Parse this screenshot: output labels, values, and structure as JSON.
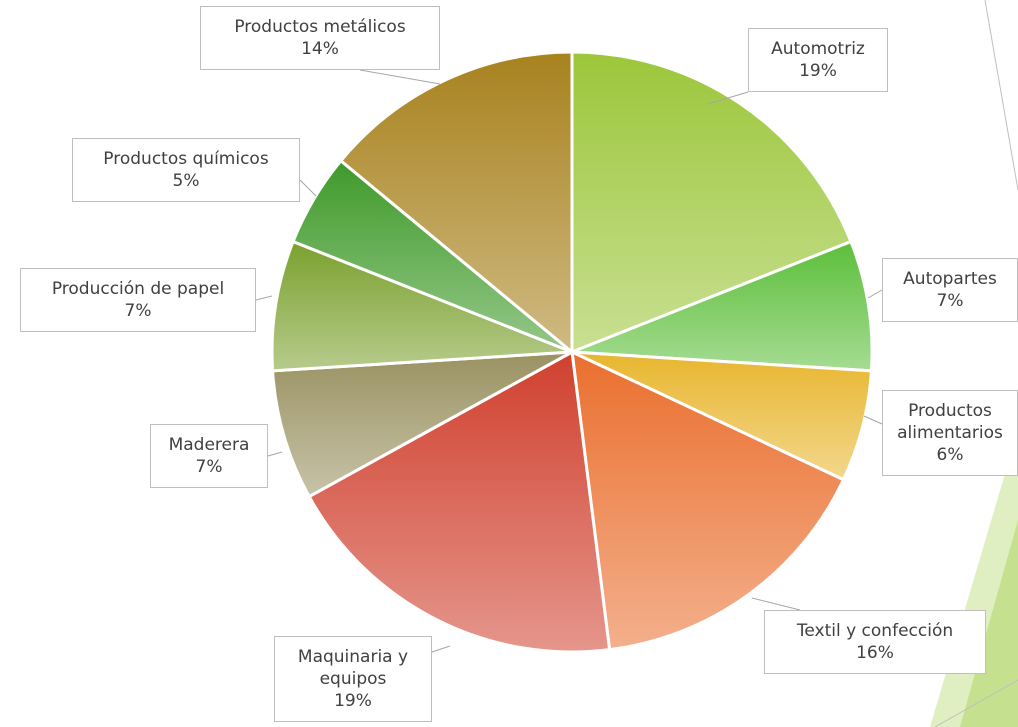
{
  "chart_data": {
    "type": "pie",
    "categories": [
      "Automotriz",
      "Autopartes",
      "Productos alimentarios",
      "Textil y confección",
      "Maquinaria y equipos",
      "Maderera",
      "Producción de papel",
      "Productos químicos",
      "Productos metálicos"
    ],
    "values": [
      19,
      7,
      6,
      16,
      19,
      7,
      7,
      5,
      14
    ],
    "value_labels": [
      "19%",
      "7%",
      "6%",
      "16%",
      "19%",
      "7%",
      "7%",
      "5%",
      "14%"
    ],
    "colors": [
      "#9cc63a",
      "#5cbf3a",
      "#e8b62e",
      "#ea6f2e",
      "#d0402e",
      "#9a9262",
      "#7ba12e",
      "#3f9a2a",
      "#a8821e"
    ]
  }
}
